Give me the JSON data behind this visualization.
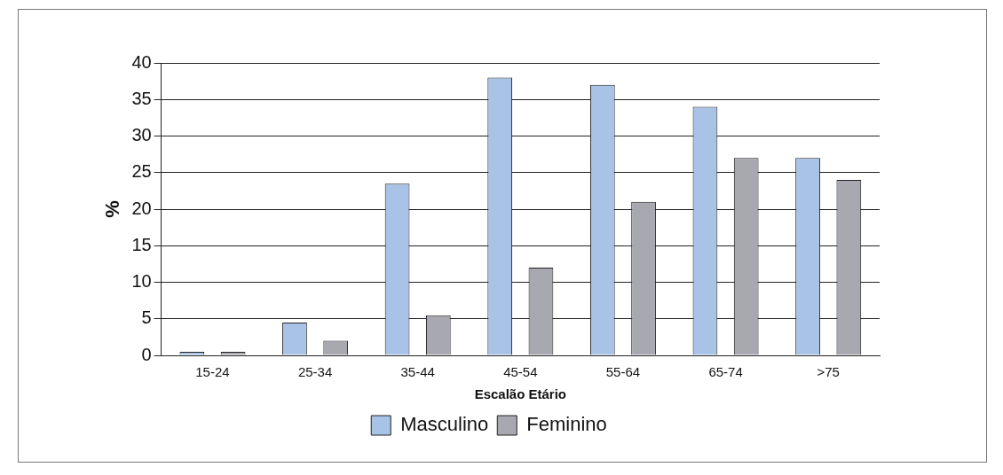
{
  "chart_data": {
    "type": "bar",
    "xlabel": "Escalão Etário",
    "ylabel": "%",
    "categories": [
      "15-24",
      "25-34",
      "35-44",
      "45-54",
      "55-64",
      "65-74",
      ">75"
    ],
    "series": [
      {
        "name": "Masculino",
        "color": "#a9c3e6",
        "values": [
          0.5,
          4.5,
          23.5,
          38,
          37,
          34,
          27
        ]
      },
      {
        "name": "Feminino",
        "color": "#a8a8b0",
        "values": [
          0.5,
          2,
          5.5,
          12,
          21,
          27,
          24
        ]
      }
    ],
    "ylim": [
      0,
      40
    ],
    "yticks": [
      0,
      5,
      10,
      15,
      20,
      25,
      30,
      35,
      40
    ],
    "grid": "y",
    "legend": "bottom"
  }
}
